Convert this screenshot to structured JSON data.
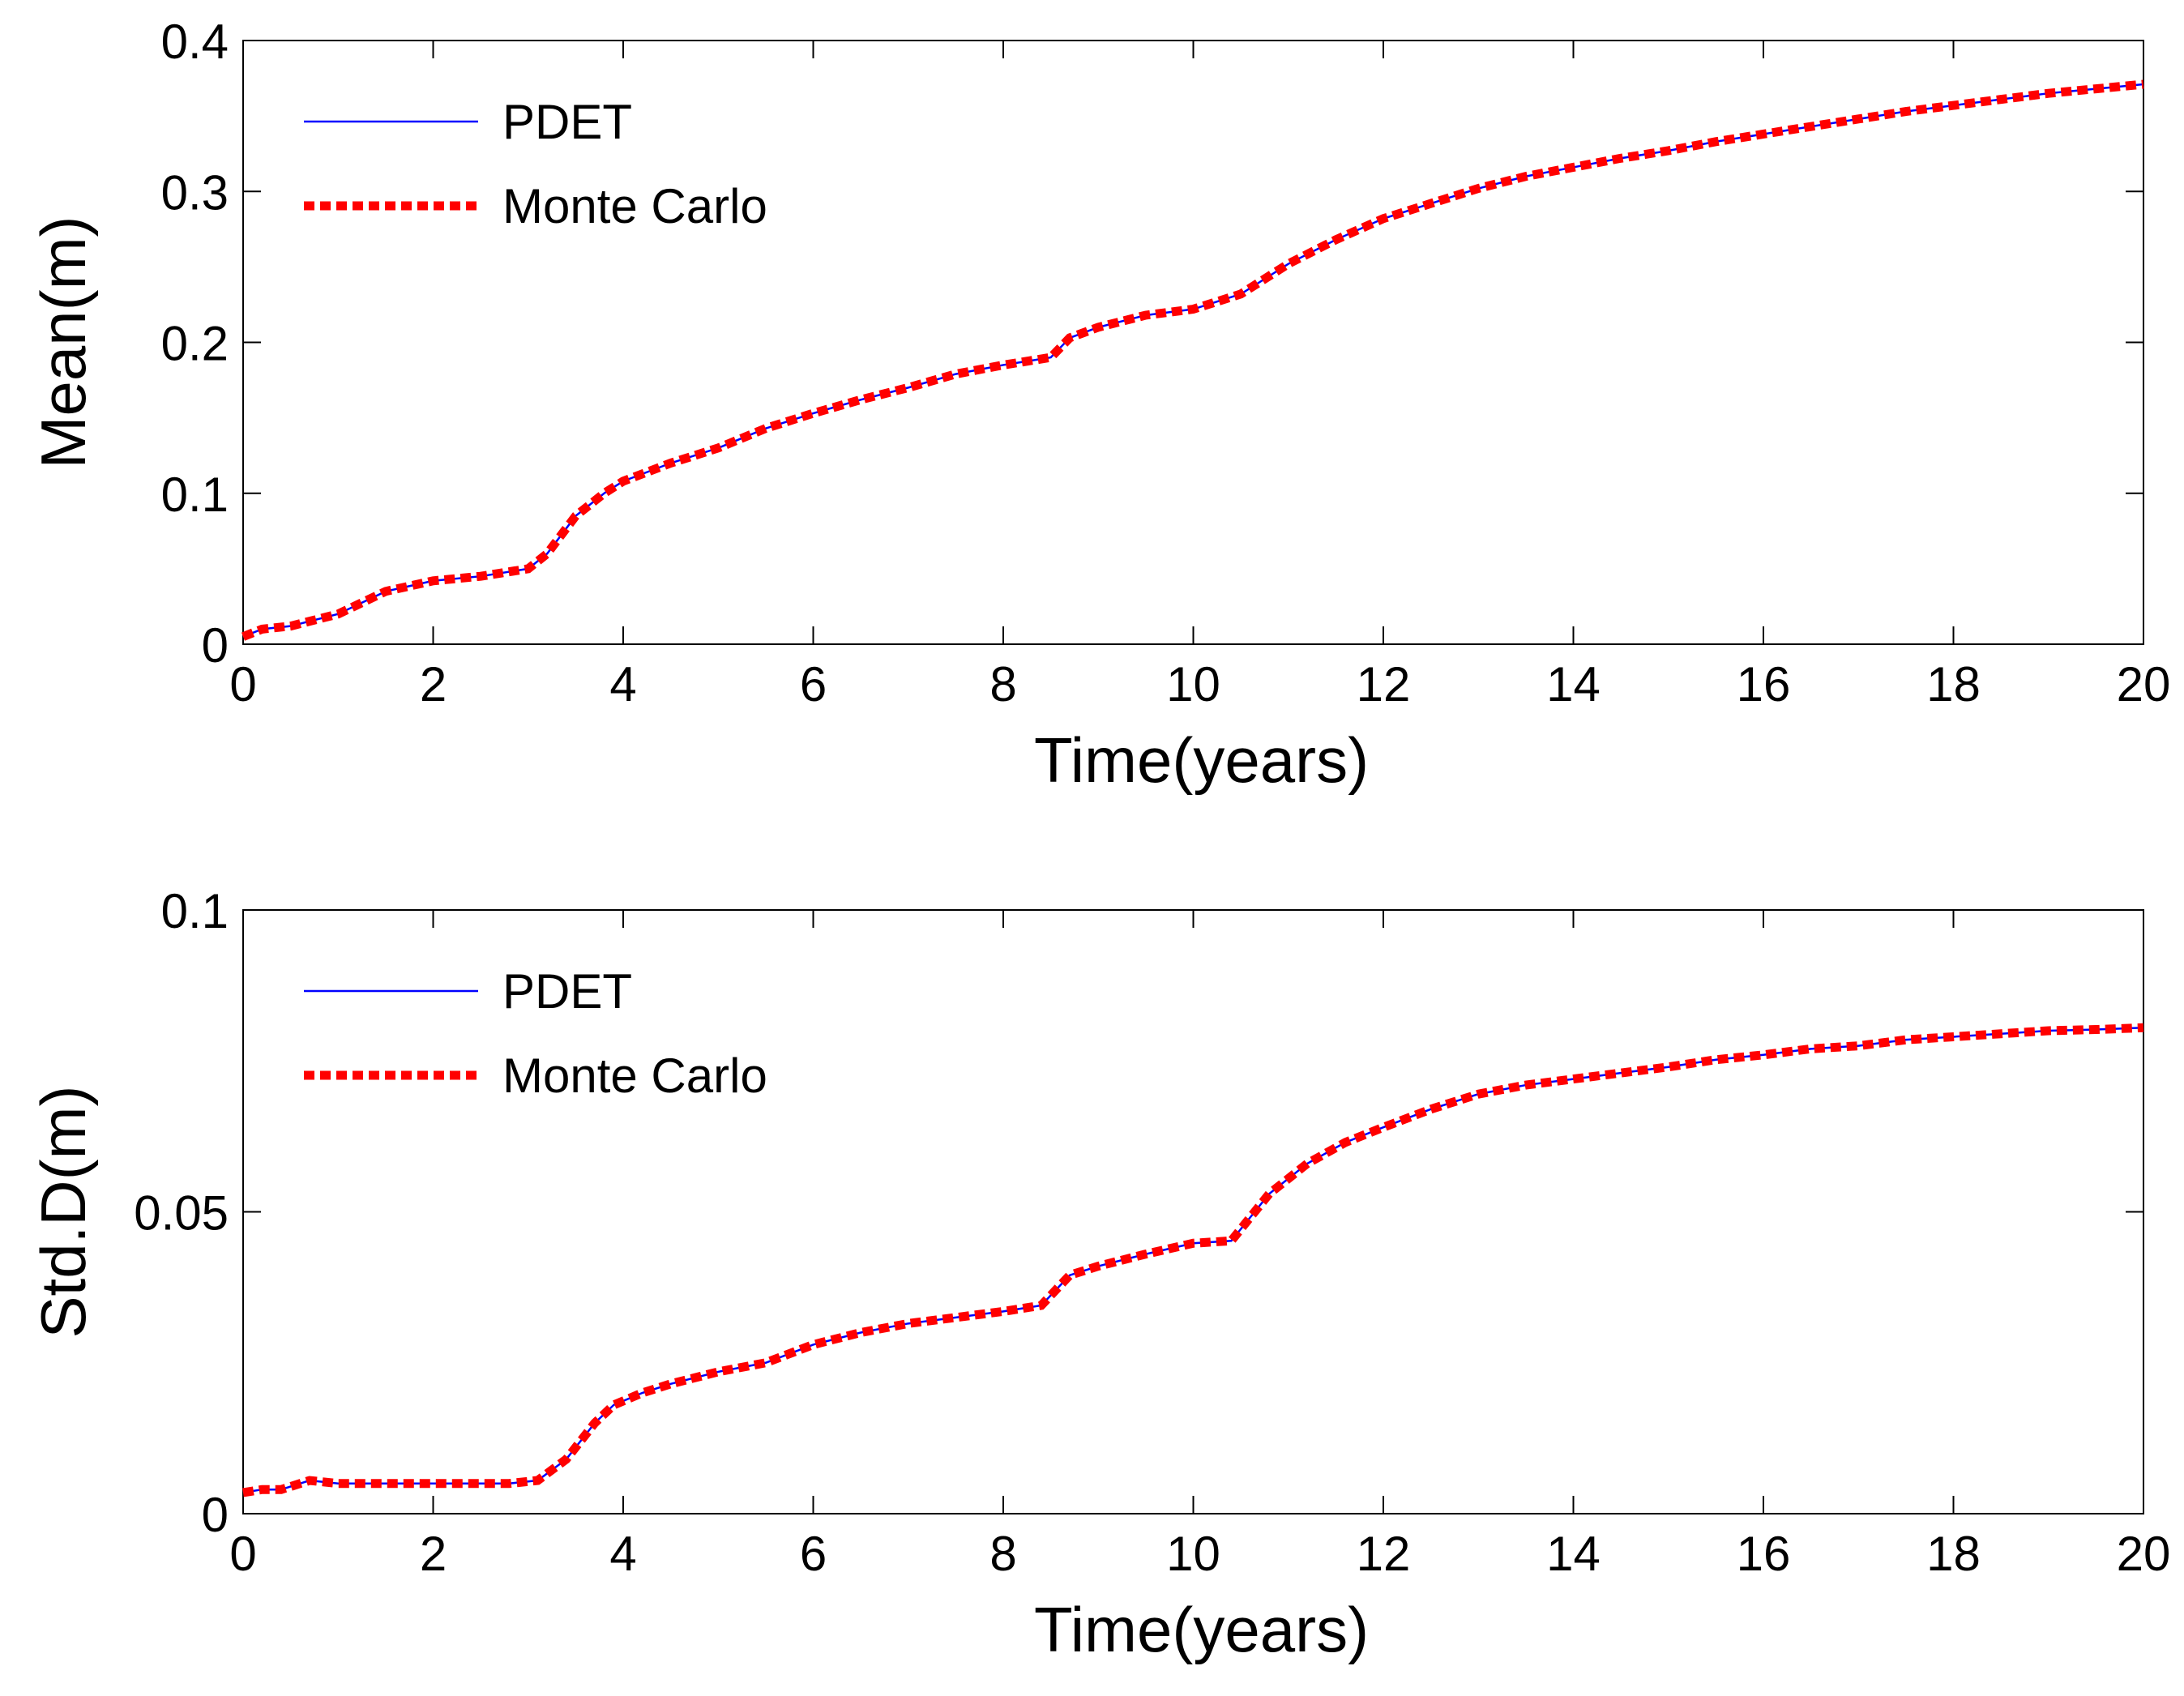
{
  "chart_data": [
    {
      "type": "line",
      "title": "",
      "xlabel": "Time(years)",
      "ylabel": "Mean(m)",
      "xlim": [
        0,
        20
      ],
      "ylim": [
        0,
        0.4
      ],
      "xticks": [
        0,
        2,
        4,
        6,
        8,
        10,
        12,
        14,
        16,
        18,
        20
      ],
      "yticks": [
        0,
        0.1,
        0.2,
        0.3,
        0.4
      ],
      "xticklabels": [
        "0",
        "2",
        "4",
        "6",
        "8",
        "10",
        "12",
        "14",
        "16",
        "18",
        "20"
      ],
      "yticklabels": [
        "0",
        "0.1",
        "0.2",
        "0.3",
        "0.4"
      ],
      "grid": false,
      "legend": "top-left",
      "series": [
        {
          "name": "PDET",
          "color": "#0000ff",
          "style": "solid",
          "x": [
            0,
            0.2,
            0.5,
            1.0,
            1.5,
            2.0,
            2.5,
            3.0,
            3.2,
            3.5,
            3.8,
            4.0,
            4.5,
            5.0,
            5.5,
            6.0,
            6.5,
            7.0,
            7.5,
            8.0,
            8.5,
            8.7,
            9.0,
            9.5,
            10.0,
            10.5,
            11.0,
            11.5,
            12.0,
            12.5,
            13.0,
            13.5,
            14.0,
            14.5,
            15.0,
            15.5,
            16.0,
            16.5,
            17.0,
            17.5,
            18.0,
            18.5,
            19.0,
            19.5,
            20.0
          ],
          "y": [
            0.005,
            0.01,
            0.012,
            0.02,
            0.035,
            0.042,
            0.045,
            0.05,
            0.06,
            0.085,
            0.1,
            0.108,
            0.12,
            0.13,
            0.143,
            0.153,
            0.162,
            0.17,
            0.179,
            0.185,
            0.19,
            0.203,
            0.21,
            0.218,
            0.222,
            0.232,
            0.252,
            0.268,
            0.282,
            0.292,
            0.302,
            0.31,
            0.316,
            0.322,
            0.327,
            0.333,
            0.338,
            0.343,
            0.348,
            0.353,
            0.357,
            0.361,
            0.365,
            0.368,
            0.371
          ]
        },
        {
          "name": "Monte Carlo",
          "color": "#ff0000",
          "style": "dotted",
          "x": [
            0,
            0.2,
            0.5,
            1.0,
            1.5,
            2.0,
            2.5,
            3.0,
            3.2,
            3.5,
            3.8,
            4.0,
            4.5,
            5.0,
            5.5,
            6.0,
            6.5,
            7.0,
            7.5,
            8.0,
            8.5,
            8.7,
            9.0,
            9.5,
            10.0,
            10.5,
            11.0,
            11.5,
            12.0,
            12.5,
            13.0,
            13.5,
            14.0,
            14.5,
            15.0,
            15.5,
            16.0,
            16.5,
            17.0,
            17.5,
            18.0,
            18.5,
            19.0,
            19.5,
            20.0
          ],
          "y": [
            0.005,
            0.01,
            0.012,
            0.02,
            0.035,
            0.042,
            0.045,
            0.05,
            0.06,
            0.085,
            0.1,
            0.108,
            0.12,
            0.13,
            0.143,
            0.153,
            0.162,
            0.17,
            0.179,
            0.185,
            0.19,
            0.203,
            0.21,
            0.218,
            0.222,
            0.232,
            0.252,
            0.268,
            0.282,
            0.292,
            0.302,
            0.31,
            0.316,
            0.322,
            0.327,
            0.333,
            0.338,
            0.343,
            0.348,
            0.353,
            0.357,
            0.361,
            0.365,
            0.368,
            0.371
          ]
        }
      ]
    },
    {
      "type": "line",
      "title": "",
      "xlabel": "Time(years)",
      "ylabel": "Std.D(m)",
      "xlim": [
        0,
        20
      ],
      "ylim": [
        0,
        0.1
      ],
      "xticks": [
        0,
        2,
        4,
        6,
        8,
        10,
        12,
        14,
        16,
        18,
        20
      ],
      "yticks": [
        0,
        0.05,
        0.1
      ],
      "xticklabels": [
        "0",
        "2",
        "4",
        "6",
        "8",
        "10",
        "12",
        "14",
        "16",
        "18",
        "20"
      ],
      "yticklabels": [
        "0",
        "0.05",
        "0.1"
      ],
      "grid": false,
      "legend": "top-left",
      "series": [
        {
          "name": "PDET",
          "color": "#0000ff",
          "style": "solid",
          "x": [
            0,
            0.2,
            0.4,
            0.7,
            1.0,
            1.5,
            2.0,
            2.5,
            2.8,
            3.1,
            3.4,
            3.7,
            3.9,
            4.2,
            4.5,
            5.0,
            5.5,
            6.0,
            6.5,
            7.0,
            7.5,
            8.0,
            8.4,
            8.7,
            9.0,
            9.5,
            10.0,
            10.4,
            10.8,
            11.2,
            11.6,
            12.0,
            12.5,
            13.0,
            13.5,
            14.0,
            14.5,
            15.0,
            15.5,
            16.0,
            16.5,
            17.0,
            17.5,
            18.0,
            18.5,
            19.0,
            19.5,
            20.0
          ],
          "y": [
            0.0035,
            0.004,
            0.004,
            0.0055,
            0.005,
            0.005,
            0.005,
            0.005,
            0.005,
            0.0055,
            0.009,
            0.015,
            0.018,
            0.02,
            0.0215,
            0.0235,
            0.025,
            0.028,
            0.03,
            0.0315,
            0.0325,
            0.0335,
            0.0345,
            0.0395,
            0.041,
            0.043,
            0.0448,
            0.0452,
            0.053,
            0.058,
            0.0615,
            0.064,
            0.067,
            0.0695,
            0.071,
            0.072,
            0.073,
            0.074,
            0.0752,
            0.076,
            0.077,
            0.0775,
            0.0785,
            0.079,
            0.0795,
            0.08,
            0.0802,
            0.0805
          ]
        },
        {
          "name": "Monte Carlo",
          "color": "#ff0000",
          "style": "dotted",
          "x": [
            0,
            0.2,
            0.4,
            0.7,
            1.0,
            1.5,
            2.0,
            2.5,
            2.8,
            3.1,
            3.4,
            3.7,
            3.9,
            4.2,
            4.5,
            5.0,
            5.5,
            6.0,
            6.5,
            7.0,
            7.5,
            8.0,
            8.4,
            8.7,
            9.0,
            9.5,
            10.0,
            10.4,
            10.8,
            11.2,
            11.6,
            12.0,
            12.5,
            13.0,
            13.5,
            14.0,
            14.5,
            15.0,
            15.5,
            16.0,
            16.5,
            17.0,
            17.5,
            18.0,
            18.5,
            19.0,
            19.5,
            20.0
          ],
          "y": [
            0.0035,
            0.004,
            0.004,
            0.0055,
            0.005,
            0.005,
            0.005,
            0.005,
            0.005,
            0.0055,
            0.009,
            0.015,
            0.018,
            0.02,
            0.0215,
            0.0235,
            0.025,
            0.028,
            0.03,
            0.0315,
            0.0325,
            0.0335,
            0.0345,
            0.0395,
            0.041,
            0.043,
            0.0448,
            0.0452,
            0.053,
            0.058,
            0.0615,
            0.064,
            0.067,
            0.0695,
            0.071,
            0.072,
            0.073,
            0.074,
            0.0752,
            0.076,
            0.077,
            0.0775,
            0.0785,
            0.079,
            0.0795,
            0.08,
            0.0802,
            0.0805
          ]
        }
      ]
    }
  ]
}
